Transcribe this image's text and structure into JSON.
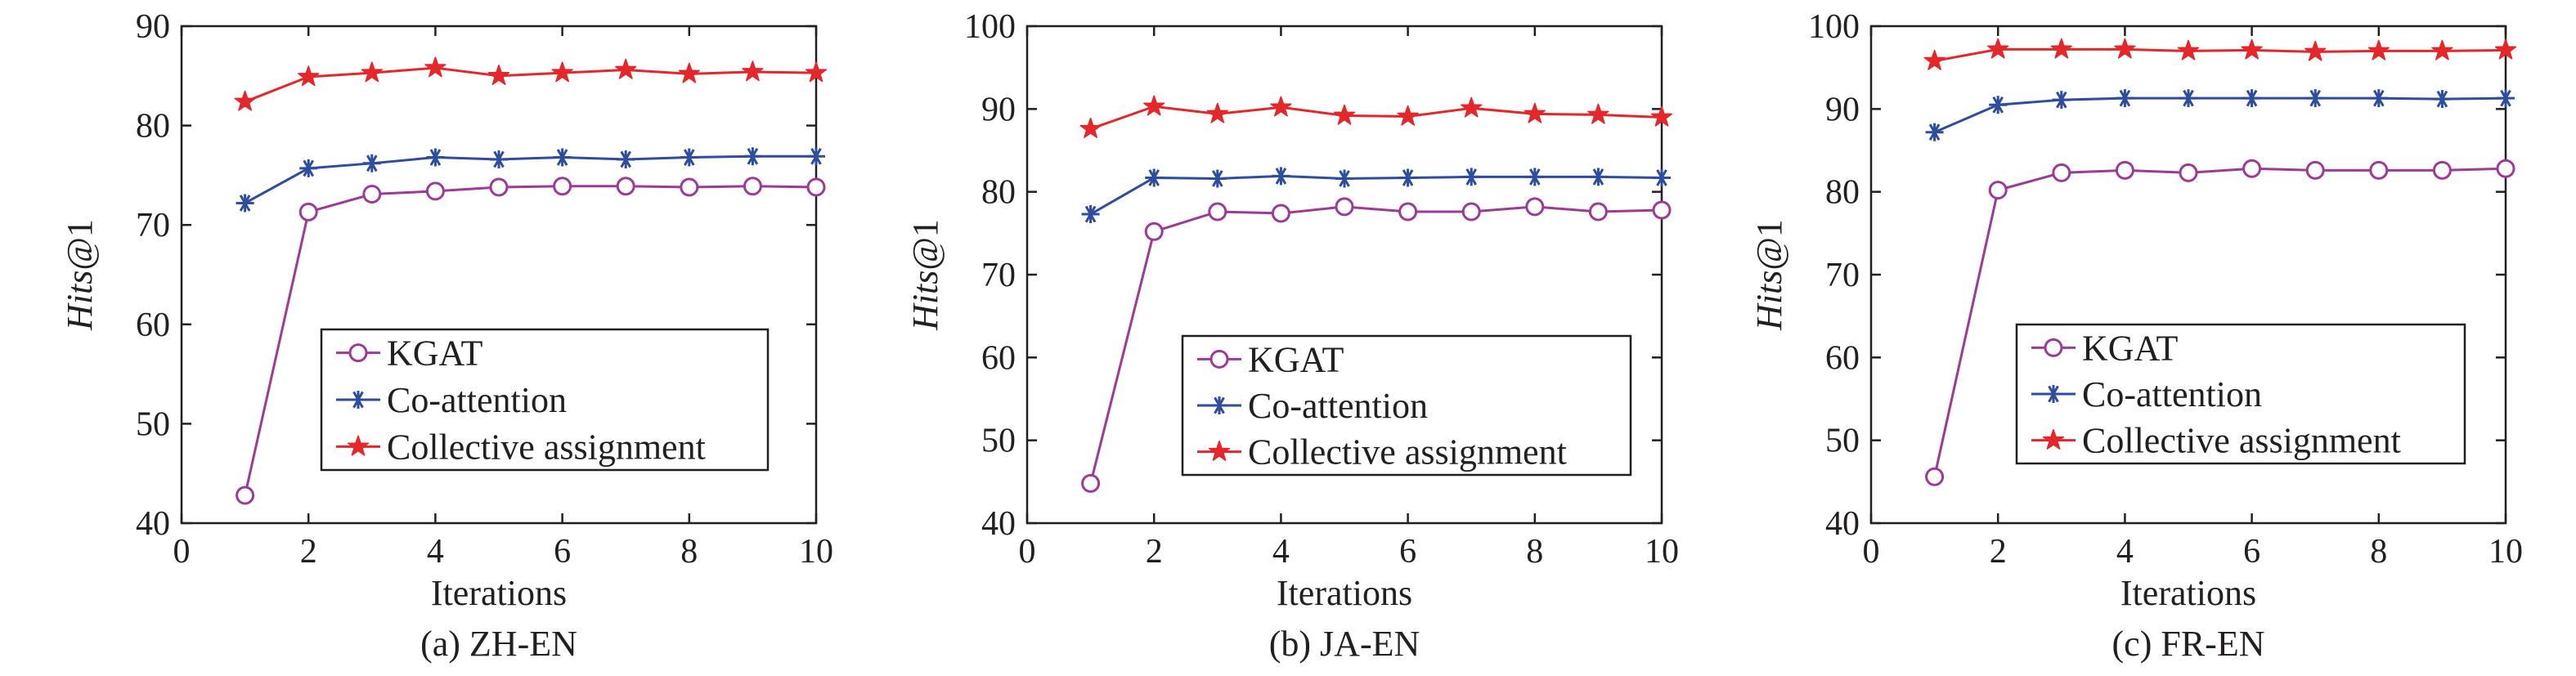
{
  "chart_data": [
    {
      "type": "line",
      "caption": "(a) ZH-EN",
      "xlabel": "Iterations",
      "ylabel_italic": "Hits",
      "ylabel_suffix": "@1",
      "xlim": [
        0,
        10
      ],
      "ylim": [
        40,
        90
      ],
      "xticks": [
        0,
        2,
        4,
        6,
        8,
        10
      ],
      "yticks": [
        40,
        50,
        60,
        70,
        80,
        90
      ],
      "grid": false,
      "legend_position": "lower-right",
      "x": [
        1,
        2,
        3,
        4,
        5,
        6,
        7,
        8,
        9,
        10
      ],
      "series": [
        {
          "name": "KGAT",
          "color": "#9b3a97",
          "marker": "circle",
          "values": [
            42.8,
            71.3,
            73.1,
            73.4,
            73.8,
            73.9,
            73.9,
            73.8,
            73.9,
            73.8
          ]
        },
        {
          "name": "Co-attention",
          "color": "#2e4d9c",
          "marker": "asterisk",
          "values": [
            72.2,
            75.7,
            76.2,
            76.8,
            76.6,
            76.8,
            76.6,
            76.8,
            76.9,
            76.9
          ]
        },
        {
          "name": "Collective assignment",
          "color": "#e3272b",
          "marker": "star",
          "values": [
            82.4,
            84.9,
            85.3,
            85.8,
            85.0,
            85.3,
            85.6,
            85.2,
            85.4,
            85.3
          ]
        }
      ]
    },
    {
      "type": "line",
      "caption": "(b) JA-EN",
      "xlabel": "Iterations",
      "ylabel_italic": "Hits",
      "ylabel_suffix": "@1",
      "xlim": [
        0,
        10
      ],
      "ylim": [
        40,
        100
      ],
      "xticks": [
        0,
        2,
        4,
        6,
        8,
        10
      ],
      "yticks": [
        40,
        50,
        60,
        70,
        80,
        90,
        100
      ],
      "grid": false,
      "legend_position": "lower-right",
      "x": [
        1,
        2,
        3,
        4,
        5,
        6,
        7,
        8,
        9,
        10
      ],
      "series": [
        {
          "name": "KGAT",
          "color": "#9b3a97",
          "marker": "circle",
          "values": [
            44.8,
            75.2,
            77.6,
            77.4,
            78.2,
            77.6,
            77.6,
            78.2,
            77.6,
            77.8
          ]
        },
        {
          "name": "Co-attention",
          "color": "#2e4d9c",
          "marker": "asterisk",
          "values": [
            77.3,
            81.7,
            81.6,
            81.9,
            81.6,
            81.7,
            81.8,
            81.8,
            81.8,
            81.7
          ]
        },
        {
          "name": "Collective assignment",
          "color": "#e3272b",
          "marker": "star",
          "values": [
            87.6,
            90.3,
            89.4,
            90.2,
            89.2,
            89.1,
            90.1,
            89.4,
            89.3,
            89.0
          ]
        }
      ]
    },
    {
      "type": "line",
      "caption": "(c) FR-EN",
      "xlabel": "Iterations",
      "ylabel_italic": "Hits",
      "ylabel_suffix": "@1",
      "xlim": [
        0,
        10
      ],
      "ylim": [
        40,
        100
      ],
      "xticks": [
        0,
        2,
        4,
        6,
        8,
        10
      ],
      "yticks": [
        40,
        50,
        60,
        70,
        80,
        90,
        100
      ],
      "grid": false,
      "legend_position": "lower-right",
      "x": [
        1,
        2,
        3,
        4,
        5,
        6,
        7,
        8,
        9,
        10
      ],
      "series": [
        {
          "name": "KGAT",
          "color": "#9b3a97",
          "marker": "circle",
          "values": [
            45.6,
            80.2,
            82.3,
            82.6,
            82.3,
            82.8,
            82.6,
            82.6,
            82.6,
            82.8
          ]
        },
        {
          "name": "Co-attention",
          "color": "#2e4d9c",
          "marker": "asterisk",
          "values": [
            87.2,
            90.5,
            91.1,
            91.3,
            91.3,
            91.3,
            91.3,
            91.3,
            91.2,
            91.3
          ]
        },
        {
          "name": "Collective assignment",
          "color": "#e3272b",
          "marker": "star",
          "values": [
            95.8,
            97.2,
            97.2,
            97.2,
            97.0,
            97.1,
            96.9,
            97.0,
            97.0,
            97.1
          ]
        }
      ]
    }
  ]
}
